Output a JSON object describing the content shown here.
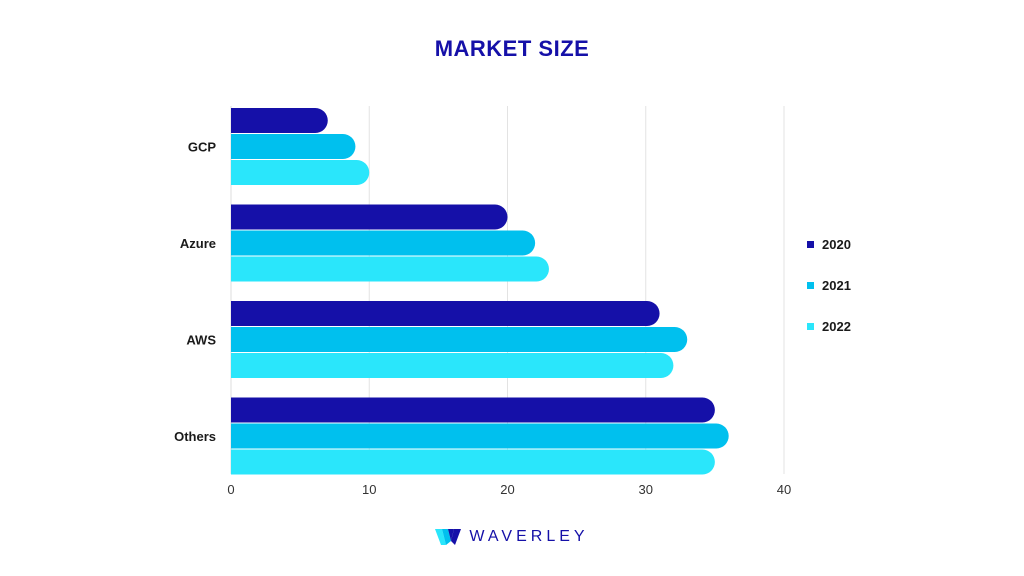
{
  "chart_data": {
    "type": "bar",
    "orientation": "horizontal",
    "title": "MARKET SIZE",
    "categories": [
      "GCP",
      "Azure",
      "AWS",
      "Others"
    ],
    "series": [
      {
        "name": "2020",
        "color": "#1510a8",
        "values": [
          7,
          20,
          31,
          35
        ]
      },
      {
        "name": "2021",
        "color": "#00c0ee",
        "values": [
          9,
          22,
          33,
          36
        ]
      },
      {
        "name": "2022",
        "color": "#2ae6fb",
        "values": [
          10,
          23,
          32,
          35
        ]
      }
    ],
    "xticks": [
      "0",
      "10",
      "20",
      "30",
      "40"
    ],
    "xlim": [
      0,
      40
    ],
    "grid": "vertical",
    "legend_position": "right"
  },
  "brand": {
    "name": "WAVERLEY",
    "logo_icon": "waverley-logo-icon"
  }
}
